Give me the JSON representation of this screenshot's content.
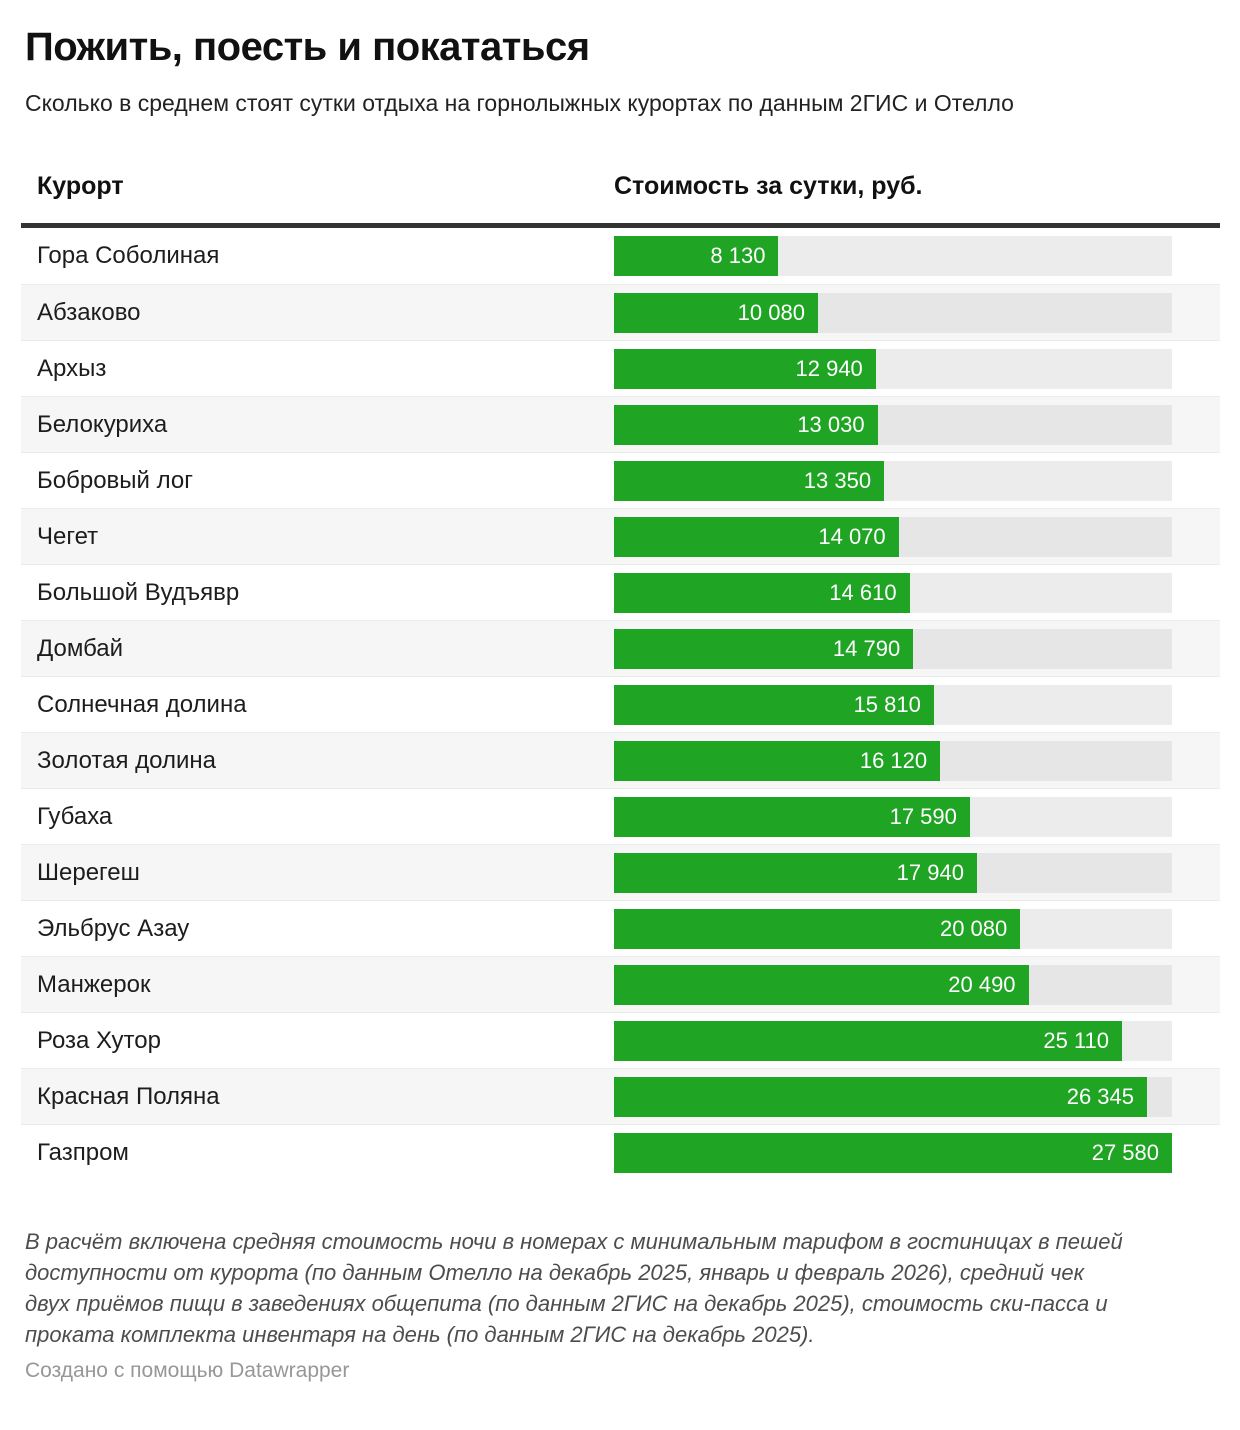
{
  "title": "Пожить, поесть и покататься",
  "subtitle": "Сколько в среднем стоят сутки отдыха на горнолыжных курортах по данным 2ГИС и Отелло",
  "columns": {
    "resort": "Курорт",
    "value": "Стоимость за сутки, руб."
  },
  "chart_data": {
    "type": "bar",
    "orientation": "horizontal",
    "title": "Пожить, поесть и покататься",
    "subtitle": "Сколько в среднем стоят сутки отдыха на горнолыжных курортах по данным 2ГИС и Отелло",
    "xlabel": "Стоимость за сутки, руб.",
    "ylabel": "Курорт",
    "xlim": [
      0,
      27580
    ],
    "grid": false,
    "legend": false,
    "categories": [
      "Гора Соболиная",
      "Абзаково",
      "Архыз",
      "Белокуриха",
      "Бобровый лог",
      "Чегет",
      "Большой Вудъявр",
      "Домбай",
      "Солнечная долина",
      "Золотая долина",
      "Губаха",
      "Шерегеш",
      "Эльбрус Азау",
      "Манжерок",
      "Роза Хутор",
      "Красная Поляна",
      "Газпром"
    ],
    "values": [
      8130,
      10080,
      12940,
      13030,
      13350,
      14070,
      14610,
      14790,
      15810,
      16120,
      17590,
      17940,
      20080,
      20490,
      25110,
      26345,
      27580
    ],
    "value_labels": [
      "8 130",
      "10 080",
      "12 940",
      "13 030",
      "13 350",
      "14 070",
      "14 610",
      "14 790",
      "15 810",
      "16 120",
      "17 590",
      "17 940",
      "20 080",
      "20 490",
      "25 110",
      "26 345",
      "27 580"
    ],
    "bar_color": "#1fa523",
    "track_color": "#ececec",
    "label_color_inside_bar": "#ffffff"
  },
  "colors": {
    "accent_green": "#1fa523",
    "header_rule": "#333333",
    "alt_row_bg": "#f6f6f6",
    "track_gray": "#ececec"
  },
  "footer": {
    "note": "В расчёт включена средняя стоимость ночи в номерах с минимальным тарифом в гостиницах в пешей доступности от курорта (по данным Отелло на декабрь 2025, январь и февраль 2026), средний чек двух приёмов пищи в заведениях общепита (по данным 2ГИС на декабрь 2025), стоимость ски-пасса и проката комплекта инвентаря на день (по данным 2ГИС на декабрь 2025).",
    "credit": "Создано с помощью Datawrapper"
  }
}
